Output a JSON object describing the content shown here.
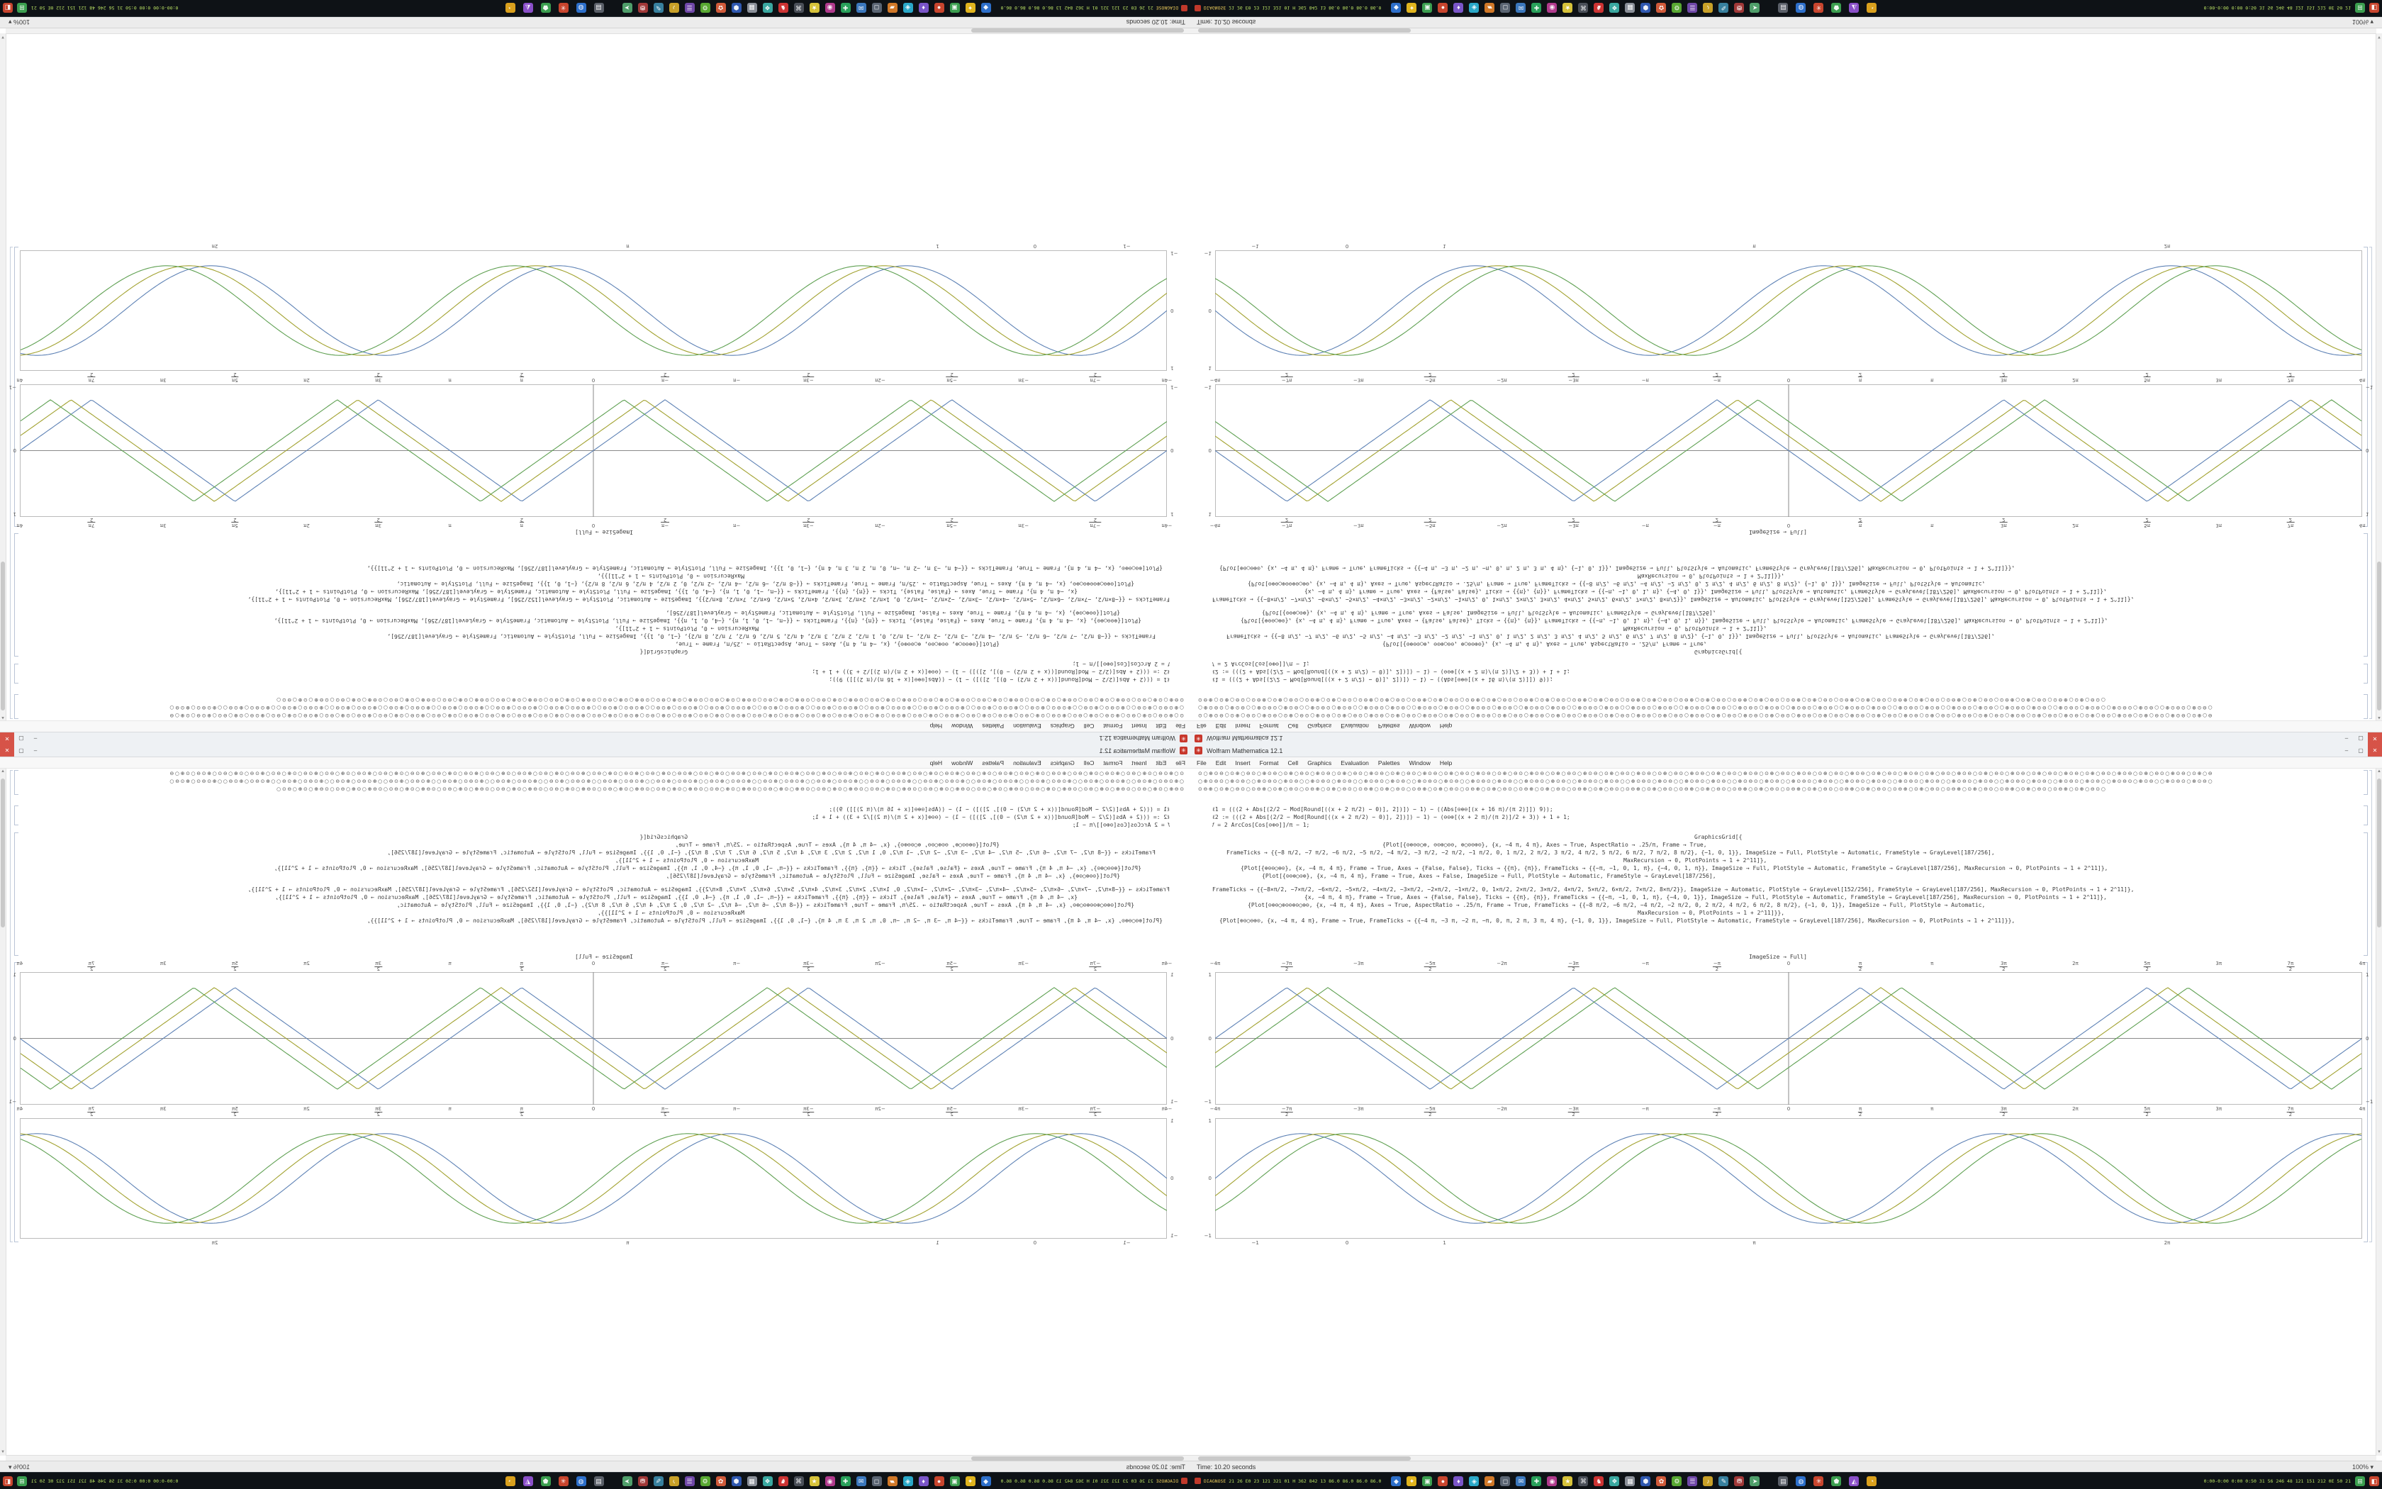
{
  "window": {
    "title": "Wolfram Mathematica 12.1",
    "menu": [
      "File",
      "Edit",
      "Insert",
      "Format",
      "Cell",
      "Graphics",
      "Evaluation",
      "Palettes",
      "Window",
      "Help"
    ],
    "buttons": {
      "minimize": "–",
      "maximize": "▢",
      "close": "✕"
    }
  },
  "statusbar": {
    "time_text": "Time: 10.20 seconds",
    "zoom": "100% ▾"
  },
  "notebook": {
    "cells": [
      {
        "lines": [
          {
            "t": "⊙○⊕⊙⊖○⊙⊕○⊖",
            "r": 19,
            "glyph": true
          },
          {
            "t": "○⊕⊙⊖⊙○⊕⊙⊖○",
            "r": 19,
            "glyph": true
          },
          {
            "t": "⊙⊖⊕○⊙⊕○⊖⊙○",
            "r": 17,
            "glyph": true
          }
        ]
      },
      {
        "lines": [
          {
            "t": "ℓ1 = (((2 + Abs[(2/2 − Mod[Round[((x + 2 π/2) − 0)], 2])]) − 1) − ((Abs[⊙⊕⊖[(x + 16 π)/(π 2)]]) 9));",
            "mt": 17,
            "pad": 20
          },
          {
            "t": "ℓ2 := (((2 + Abs[(2/2 − Mod[Round[((x + 2 π/2) − 0)], 2])]) − 1) − (⊖⊙⊕[(x + 2 π)/(π 2)]/2 + 3)) + 1 + 1;",
            "pad": 20
          },
          {
            "t": "𝑓 = 2 ArcCos[Cos[⊙⊕⊖]]/π − 1;",
            "pad": 20
          }
        ]
      },
      {
        "lines": [
          {
            "t": "GraphicsGrid[{",
            "mt": 6,
            "pad": 700
          },
          {
            "t": "{Plot[{⊙⊕⊖⊙○⊕, ⊖⊙⊕○⊙⊖, ⊕○⊙⊖⊕⊙}, {x, −4 π, 4 π}, Axes → True, AspectRatio → .25/π, Frame → True,",
            "pad": 260
          },
          {
            "t": "FrameTicks → {{−8 π/2, −7 π/2, −6 π/2, −5 π/2, −4 π/2, −3 π/2, −2 π/2, −1 π/2, 0, 1 π/2, 2 π/2, 3 π/2, 4 π/2, 5 π/2, 6 π/2, 7 π/2, 8 π/2}, {−1, 0, 1}}, ImageSize → Full, PlotStyle → Automatic, FrameStyle → GrayLevel[187/256],",
            "pad": 40
          },
          {
            "t": "MaxRecursion → 0, PlotPoints → 1 + 2^11]},",
            "pad": 600
          },
          {
            "t": "{Plot[{⊕⊙⊖○⊕⊙}, {x, −4 π, 4 π}, Frame → True, Axes → {False, False}, Ticks → {{π}, {π}}, FrameTicks → {{−π, −1, 0, 1, π}, {−4, 0, 1, π}}, ImageSize → Full, PlotStyle → Automatic, FrameStyle → GrayLevel[187/256], MaxRecursion → 0, PlotPoints → 1 + 2^11]},",
            "pad": 60
          },
          {
            "t": "{Plot[{⊙⊖⊕○⊙⊕}, {x, −4 π, 4 π}, Frame → True, Axes → False, ImageSize → Full, PlotStyle → Automatic, FrameStyle → GrayLevel[187/256],",
            "pad": 90
          }
        ]
      },
      {
        "lines": [
          {
            "t": "FrameTicks → {{−8×π/2, −7×π/2, −6×π/2, −5×π/2, −4×π/2, −3×π/2, −2×π/2, −1×π/2, 0, 1×π/2, 2×π/2, 3×π/2, 4×π/2, 5×π/2, 6×π/2, 7×π/2, 8×π/2}}, ImageSize → Automatic, PlotStyle → GrayLevel[152/256], FrameStyle → GrayLevel[187/256], MaxRecursion → 0, PlotPoints → 1 + 2^11]},",
            "mt": 8,
            "pad": 20
          },
          {
            "t": "{x, −4 π, 4 π}, Frame → True, Axes → {False, False}, Ticks → {{π}, {π}}, FrameTicks → {{−π, −1, 0, 1, π}, {−4, 0, 1}}, ImageSize → Full, PlotStyle → Automatic, FrameStyle → GrayLevel[187/256], MaxRecursion → 0, PlotPoints → 1 + 2^11]},",
            "pad": 150
          },
          {
            "t": "{Plot[⊙⊕⊖○⊕⊙⊖⊕⊙○⊕⊖, {x, −4 π, 4 π}, Axes → True, AspectRatio → .25/π, Frame → True, FrameTicks → {{−8 π/2, −6 π/2, −4 π/2, −2 π/2, 0, 2 π/2, 4 π/2, 6 π/2, 8 π/2}, {−1, 0, 1}}, ImageSize → Full, PlotStyle → Automatic,",
            "pad": 70
          },
          {
            "t": "MaxRecursion → 0, PlotPoints → 1 + 2^11]}},",
            "pad": 620
          },
          {
            "t": "{Plot[⊕⊙○⊖⊕⊙, {x, −4 π, 4 π}, Frame → True, FrameTicks → {{−4 π, −3 π, −2 π, −π, 0, π, 2 π, 3 π, 4 π}, {−1, 0, 1}}, ImageSize → Full, PlotStyle → Automatic, FrameStyle → GrayLevel[187/256], MaxRecursion → 0, PlotPoints → 1 + 2^11]}},",
            "pad": 30
          },
          {
            "t": "ImageSize → Full]",
            "mt": 40,
            "center": true
          }
        ]
      }
    ]
  },
  "chart_data": [
    {
      "name": "triangle-wave-plot",
      "type": "line",
      "wave": "triangle",
      "x_range": [
        "-4π",
        "4π"
      ],
      "cycles": 4,
      "amplitude": 1,
      "series": [
        {
          "name": "wave-1",
          "phase": 0.0,
          "color": "#5E82B5"
        },
        {
          "name": "wave-2",
          "phase": 0.45,
          "color": "#A2A230"
        },
        {
          "name": "wave-3",
          "phase": 0.9,
          "color": "#5FA052"
        }
      ],
      "x_ticks": [
        "-4π",
        "-7π/2",
        "-3π",
        "-5π/2",
        "-2π",
        "-3π/2",
        "-π",
        "-π/2",
        "0",
        "π/2",
        "π",
        "3π/2",
        "2π",
        "5π/2",
        "3π",
        "7π/2",
        "4π"
      ],
      "y_ticks": [
        "1",
        "0",
        "-1"
      ],
      "grid": false,
      "legend": "none",
      "layout": {
        "frame": [
          34,
          321,
          1618,
          187
        ],
        "amp": 0.82,
        "labels_top": true,
        "labels_bottom": true,
        "ylabels_right": true,
        "axes_cross": true
      }
    },
    {
      "name": "sine-wave-plot",
      "type": "line",
      "wave": "sine",
      "cycles": 3.3,
      "amplitude": 1,
      "series": [
        {
          "name": "wave-1",
          "phase": 0.0,
          "color": "#5E82B5"
        },
        {
          "name": "wave-2",
          "phase": 0.4,
          "color": "#A2A230"
        },
        {
          "name": "wave-3",
          "phase": 0.8,
          "color": "#5FA052"
        }
      ],
      "x_ticks_pos": [
        {
          "p": 0.035,
          "t": "-1"
        },
        {
          "p": 0.115,
          "t": "0"
        },
        {
          "p": 0.2,
          "t": "1"
        },
        {
          "p": 0.47,
          "t": "π"
        },
        {
          "p": 0.83,
          "t": "2π"
        }
      ],
      "y_ticks": [
        "1",
        "0",
        "-1"
      ],
      "grid": false,
      "legend": "none",
      "layout": {
        "frame": [
          34,
          527,
          1618,
          170
        ],
        "amp": 0.8,
        "labels_top": false,
        "labels_bottom": true,
        "ylabels_right": false,
        "axes_cross": false
      }
    }
  ],
  "taskbar": {
    "stats_left_label": "DIAGNOSE",
    "stats_left_values": "21 26 E0 23 121 321 01 H 362 842 13 86.0 86.0 86.0 86.0",
    "tray_text": "0:00-0:00 0:00 0:50 31 56 246 48 121 151 212 0E 50 21",
    "apps": [
      {
        "color": "#2d6fca",
        "glyph": "◆"
      },
      {
        "color": "#e0b41e",
        "glyph": "✦"
      },
      {
        "color": "#3b9e4f",
        "glyph": "▣"
      },
      {
        "color": "#c8452e",
        "glyph": "●"
      },
      {
        "color": "#7a55c8",
        "glyph": "♦"
      },
      {
        "color": "#2aa8c8",
        "glyph": "◈"
      },
      {
        "color": "#d07828",
        "glyph": "▰"
      },
      {
        "color": "#5a6472",
        "glyph": "◻"
      },
      {
        "color": "#3b77bc",
        "glyph": "✉"
      },
      {
        "color": "#28a05a",
        "glyph": "✚"
      },
      {
        "color": "#b03a8c",
        "glyph": "◉"
      },
      {
        "color": "#d6c23a",
        "glyph": "★"
      },
      {
        "color": "#4a4f58",
        "glyph": "⌘"
      },
      {
        "color": "#cc3333",
        "glyph": "♞"
      },
      {
        "color": "#3aa8a0",
        "glyph": "❖"
      },
      {
        "color": "#8a8f98",
        "glyph": "▦"
      },
      {
        "color": "#2f58b0",
        "glyph": "⬢"
      },
      {
        "color": "#d05a3a",
        "glyph": "✿"
      },
      {
        "color": "#58a832",
        "glyph": "⚙"
      },
      {
        "color": "#7048a8",
        "glyph": "☰"
      },
      {
        "color": "#c8a028",
        "glyph": "♪"
      },
      {
        "color": "#38809e",
        "glyph": "✎"
      },
      {
        "color": "#a03838",
        "glyph": "⛃"
      },
      {
        "color": "#4f9e6a",
        "glyph": "➤"
      }
    ],
    "extras": [
      {
        "color": "#5a5f68",
        "glyph": "▤"
      },
      {
        "color": "#2d6fca",
        "glyph": "◍"
      },
      {
        "color": "#c8452e",
        "glyph": "✳"
      },
      {
        "color": "#3b9e4f",
        "glyph": "⬟"
      },
      {
        "color": "#8a4fc8",
        "glyph": "◭"
      },
      {
        "color": "#d9a01d",
        "glyph": "◔"
      }
    ],
    "tray_icons": [
      {
        "color": "#3b9e4f",
        "glyph": "⊞"
      },
      {
        "color": "#c8452e",
        "glyph": "◧"
      }
    ],
    "stats_chip_color": "#c0392b"
  }
}
